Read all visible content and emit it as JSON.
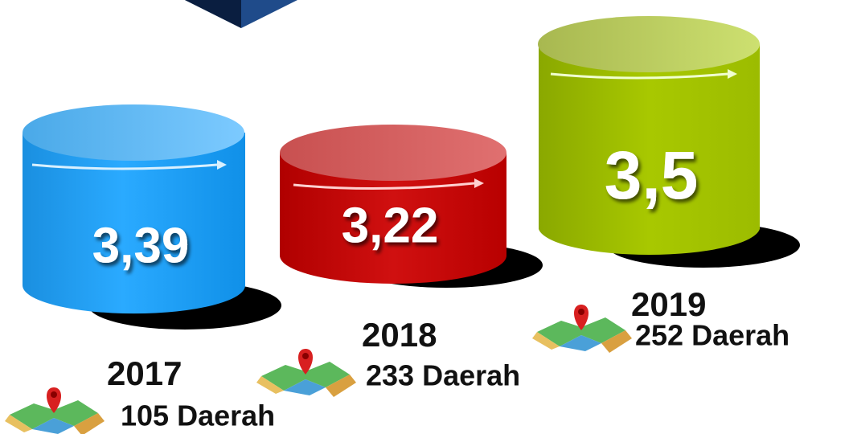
{
  "items": [
    {
      "value": "3,39",
      "year": "2017",
      "regions": "105 Daerah"
    },
    {
      "value": "3,22",
      "year": "2018",
      "regions": "233 Daerah"
    },
    {
      "value": "3,5",
      "year": "2019",
      "regions": "252 Daerah"
    }
  ]
}
